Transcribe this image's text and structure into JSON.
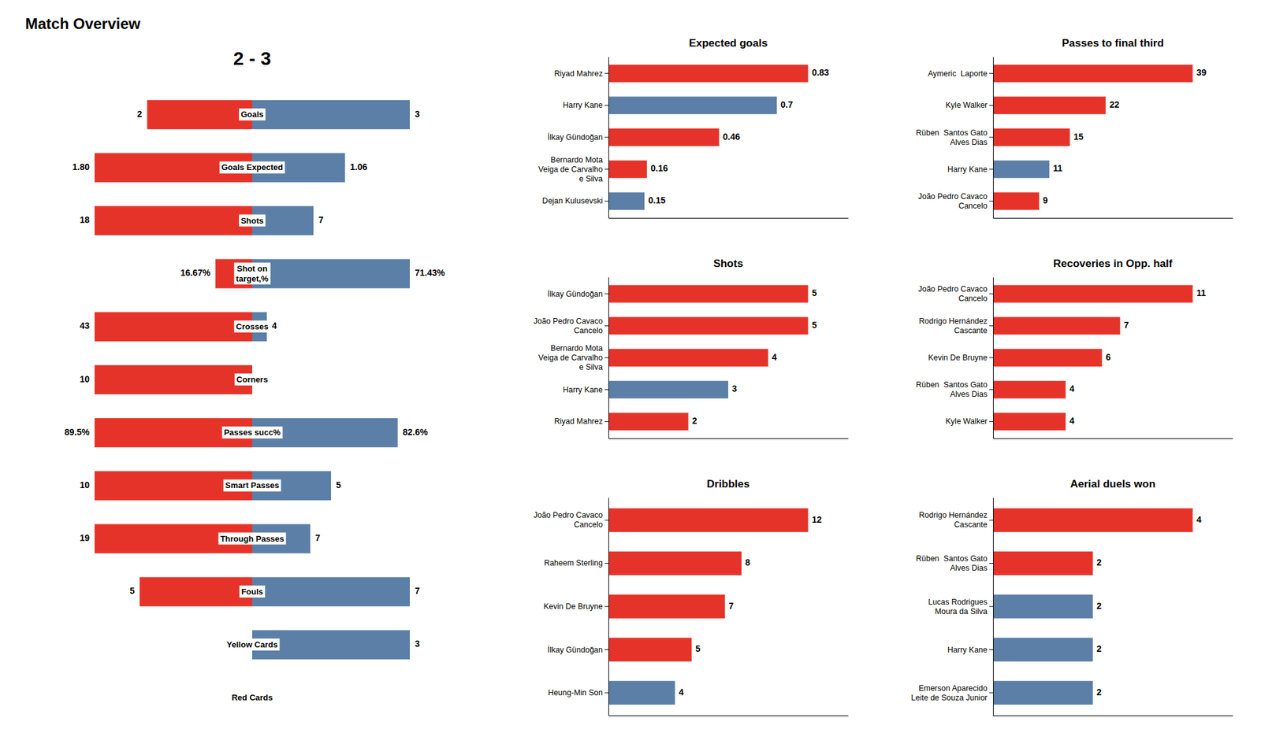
{
  "chart_data": [
    {
      "type": "diverging",
      "orientation": "horizontal",
      "title": "Match Overview",
      "subtitle": "2 - 3",
      "categories": [
        "Goals",
        "Goals Expected",
        "Shots",
        "Shot on\ntarget,%",
        "Crosses",
        "Corners",
        "Passes succ%",
        "Smart Passes",
        "Through Passes",
        "Fouls",
        "Yellow Cards",
        "Red Cards"
      ],
      "series": [
        {
          "color": "#e63329",
          "values": [
            2,
            1.8,
            18,
            16.67,
            43,
            10,
            89.5,
            10,
            19,
            5,
            0,
            0
          ],
          "value_labels": [
            "2",
            "1.80",
            "18",
            "16.67%",
            "43",
            "10",
            "89.5%",
            "10",
            "19",
            "5",
            "0",
            "0"
          ]
        },
        {
          "color": "#5b7fa6",
          "values": [
            3,
            1.06,
            7,
            71.43,
            4,
            0,
            82.6,
            5,
            7,
            7,
            3,
            0
          ],
          "value_labels": [
            "3",
            "1.06",
            "7",
            "71.43%",
            "4",
            "0",
            "82.6%",
            "5",
            "7",
            "7",
            "3",
            "0"
          ]
        }
      ],
      "data_labels": true
    },
    {
      "type": "bar",
      "orientation": "horizontal",
      "title": "Expected goals",
      "categories": [
        "Riyad Mahrez",
        "Harry Kane",
        "İlkay Gündoğan",
        "Bernardo Mota\nVeiga de Carvalho\ne Silva",
        "Dejan Kulusevski"
      ],
      "values": [
        0.83,
        0.7,
        0.46,
        0.16,
        0.15
      ],
      "colors": [
        "#e63329",
        "#5b7fa6",
        "#e63329",
        "#e63329",
        "#5b7fa6"
      ],
      "xlim": [
        0,
        0.996
      ],
      "data_labels": true,
      "tick_labels": "y"
    },
    {
      "type": "bar",
      "orientation": "horizontal",
      "title": "Shots",
      "categories": [
        "İlkay Gündoğan",
        "João Pedro Cavaco\nCancelo",
        "Bernardo Mota\nVeiga de Carvalho\ne Silva",
        "Harry Kane",
        "Riyad Mahrez"
      ],
      "values": [
        5,
        5,
        4,
        3,
        2
      ],
      "colors": [
        "#e63329",
        "#e63329",
        "#e63329",
        "#5b7fa6",
        "#e63329"
      ],
      "xlim": [
        0,
        6
      ],
      "data_labels": true,
      "tick_labels": "y"
    },
    {
      "type": "bar",
      "orientation": "horizontal",
      "title": "Dribbles",
      "categories": [
        "João Pedro Cavaco\nCancelo",
        "Raheem Sterling",
        "Kevin De Bruyne",
        "İlkay Gündoğan",
        "Heung-Min Son"
      ],
      "values": [
        12,
        8,
        7,
        5,
        4
      ],
      "colors": [
        "#e63329",
        "#e63329",
        "#e63329",
        "#e63329",
        "#5b7fa6"
      ],
      "xlim": [
        0,
        14.4
      ],
      "data_labels": true,
      "tick_labels": "y"
    },
    {
      "type": "bar",
      "orientation": "horizontal",
      "title": "Passes to final third",
      "categories": [
        "Aymeric  Laporte",
        "Kyle Walker",
        "Rüben  Santos Gato\nAlves Dias",
        "Harry Kane",
        "João Pedro Cavaco\nCancelo"
      ],
      "values": [
        39,
        22,
        15,
        11,
        9
      ],
      "colors": [
        "#e63329",
        "#e63329",
        "#e63329",
        "#5b7fa6",
        "#e63329"
      ],
      "xlim": [
        0,
        46.8
      ],
      "data_labels": true,
      "tick_labels": "y"
    },
    {
      "type": "bar",
      "orientation": "horizontal",
      "title": "Recoveries in Opp. half",
      "categories": [
        "João Pedro Cavaco\nCancelo",
        "Rodrigo Hernández\nCascante",
        "Kevin De Bruyne",
        "Rüben  Santos Gato\nAlves Dias",
        "Kyle Walker"
      ],
      "values": [
        11,
        7,
        6,
        4,
        4
      ],
      "colors": [
        "#e63329",
        "#e63329",
        "#e63329",
        "#e63329",
        "#e63329"
      ],
      "xlim": [
        0,
        13.2
      ],
      "data_labels": true,
      "tick_labels": "y"
    },
    {
      "type": "bar",
      "orientation": "horizontal",
      "title": "Aerial duels won",
      "categories": [
        "Rodrigo Hernández\nCascante",
        "Rüben  Santos Gato\nAlves Dias",
        "Lucas Rodrigues\nMoura da Silva",
        "Harry Kane",
        "Emerson Aparecido\nLeite de Souza Junior"
      ],
      "values": [
        4,
        2,
        2,
        2,
        2
      ],
      "colors": [
        "#e63329",
        "#e63329",
        "#5b7fa6",
        "#5b7fa6",
        "#5b7fa6"
      ],
      "xlim": [
        0,
        4.8
      ],
      "data_labels": true,
      "tick_labels": "y"
    }
  ]
}
